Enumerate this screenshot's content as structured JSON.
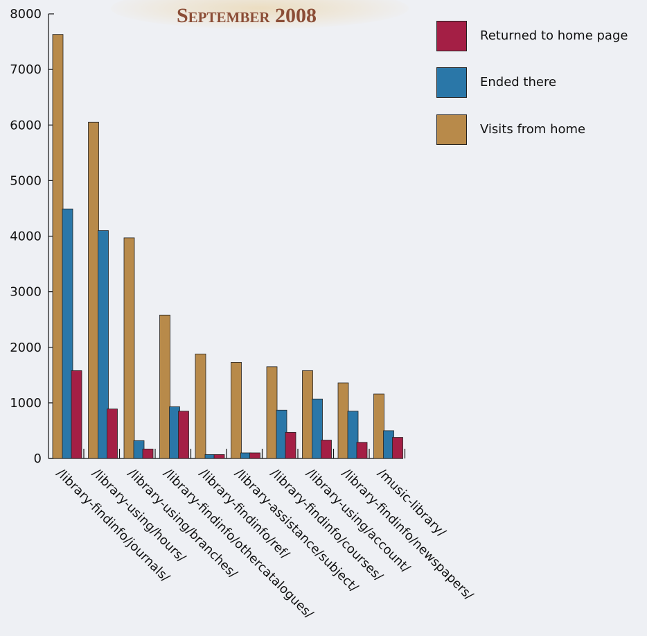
{
  "chart_data": {
    "type": "bar",
    "title": "September 2008",
    "xlabel": "",
    "ylabel": "",
    "ylim": [
      0,
      8000
    ],
    "yticks": [
      0,
      1000,
      2000,
      3000,
      4000,
      5000,
      6000,
      7000,
      8000
    ],
    "grid": false,
    "legend_position": "top-right",
    "categories": [
      "/library-findinfo/journals/",
      "/library-using/hours/",
      "/library-using/branches/",
      "/library-findinfo/othercatalogues/",
      "/library-findinfo/ref/",
      "/library-assistance/subject/",
      "/library-findinfo/courses/",
      "/library-using/account/",
      "/library-findinfo/newspapers/",
      "/music-library/"
    ],
    "series": [
      {
        "name": "Visits from home",
        "color": "#b88a4a",
        "values": [
          7630,
          6050,
          3970,
          2580,
          1880,
          1730,
          1650,
          1580,
          1360,
          1160
        ]
      },
      {
        "name": "Ended there",
        "color": "#2a77a8",
        "values": [
          4490,
          4100,
          320,
          930,
          70,
          100,
          870,
          1070,
          850,
          500
        ]
      },
      {
        "name": "Returned to home page",
        "color": "#a41f45",
        "values": [
          1580,
          890,
          170,
          850,
          70,
          100,
          470,
          330,
          290,
          380
        ]
      }
    ],
    "legend_order": [
      "Returned to home page",
      "Ended there",
      "Visits from home"
    ]
  }
}
